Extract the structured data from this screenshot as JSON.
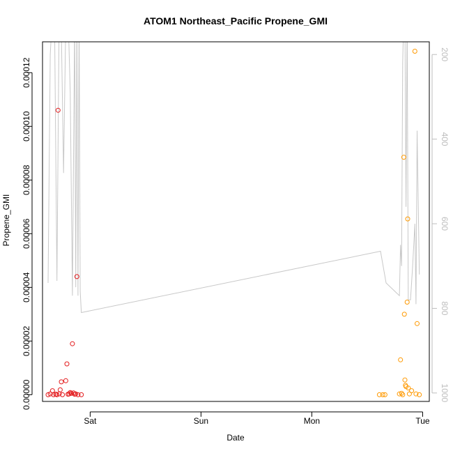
{
  "chart_data": {
    "type": "scatter",
    "title": "ATOM1 Northeast_Pacific Propene_GMI",
    "xlabel": "Date",
    "ylabel": "Propene_GMI",
    "x_ticks": [
      "Sat",
      "Sun",
      "Mon",
      "Tue"
    ],
    "x_tick_days": [
      1,
      2,
      3,
      4
    ],
    "xlim": [
      0.57,
      4.06
    ],
    "ylim": [
      -2.5e-06,
      0.0001315
    ],
    "y_ticks": [
      0,
      2e-05,
      4e-05,
      6e-05,
      8e-05,
      0.0001,
      0.00012
    ],
    "y_tick_labels": [
      "0.00000",
      "0.00002",
      "0.00004",
      "0.00006",
      "0.00008",
      "0.00010",
      "0.00012"
    ],
    "y2_lim": [
      1020,
      170
    ],
    "y2_ticks": [
      200,
      400,
      600,
      800,
      1000
    ],
    "y2_tick_labels": [
      "200",
      "400",
      "600",
      "800",
      "1000"
    ],
    "colors": {
      "series1": "#e31a1c",
      "series2": "#ff9900",
      "pressure": "#c8c8c8",
      "axis": "#000000",
      "axis2": "#bdbdbd"
    },
    "series": [
      {
        "color": "#e31a1c",
        "points": [
          [
            0.62,
            0.0
          ],
          [
            0.64,
            3e-07
          ],
          [
            0.66,
            1.5e-06
          ],
          [
            0.67,
            0.0
          ],
          [
            0.69,
            2e-07
          ],
          [
            0.7,
            0.0
          ],
          [
            0.71,
            0.000106
          ],
          [
            0.72,
            3e-07
          ],
          [
            0.73,
            1.8e-06
          ],
          [
            0.74,
            4.8e-06
          ],
          [
            0.75,
            0.0
          ],
          [
            0.78,
            5.2e-06
          ],
          [
            0.79,
            1.15e-05
          ],
          [
            0.8,
            2e-07
          ],
          [
            0.81,
            3e-07
          ],
          [
            0.82,
            8e-07
          ],
          [
            0.83,
            5e-07
          ],
          [
            0.84,
            1.9e-05
          ],
          [
            0.85,
            7e-07
          ],
          [
            0.86,
            2e-07
          ],
          [
            0.87,
            3e-07
          ],
          [
            0.88,
            4.4e-05
          ],
          [
            0.89,
            0.0
          ],
          [
            0.92,
            0.0
          ]
        ]
      },
      {
        "color": "#ff9900",
        "points": [
          [
            3.61,
            0.0
          ],
          [
            3.64,
            0.0
          ],
          [
            3.66,
            0.0
          ],
          [
            3.79,
            3e-07
          ],
          [
            3.8,
            1.3e-05
          ],
          [
            3.81,
            5e-07
          ],
          [
            3.82,
            0.0
          ],
          [
            3.83,
            8.85e-05
          ],
          [
            3.835,
            3e-05
          ],
          [
            3.84,
            5.5e-06
          ],
          [
            3.845,
            3.5e-06
          ],
          [
            3.85,
            3e-06
          ],
          [
            3.86,
            3.45e-05
          ],
          [
            3.865,
            6.55e-05
          ],
          [
            3.87,
            2.5e-06
          ],
          [
            3.88,
            3e-07
          ],
          [
            3.9,
            1.5e-06
          ],
          [
            3.93,
            0.000128
          ],
          [
            3.94,
            3e-07
          ],
          [
            3.95,
            2.65e-05
          ],
          [
            3.97,
            0.0
          ]
        ]
      }
    ],
    "pressure_line": {
      "color": "#c8c8c8",
      "points": [
        [
          0.62,
          740
        ],
        [
          0.64,
          200
        ],
        [
          0.66,
          100
        ],
        [
          0.68,
          160
        ],
        [
          0.7,
          735
        ],
        [
          0.72,
          100
        ],
        [
          0.74,
          140
        ],
        [
          0.76,
          480
        ],
        [
          0.78,
          120
        ],
        [
          0.8,
          100
        ],
        [
          0.82,
          290
        ],
        [
          0.84,
          770
        ],
        [
          0.86,
          120
        ],
        [
          0.87,
          750
        ],
        [
          0.88,
          120
        ],
        [
          0.89,
          770
        ],
        [
          0.9,
          100
        ],
        [
          0.91,
          760
        ],
        [
          0.92,
          810
        ],
        [
          3.62,
          665
        ],
        [
          3.67,
          740
        ],
        [
          3.79,
          770
        ],
        [
          3.8,
          650
        ],
        [
          3.81,
          700
        ],
        [
          3.82,
          220
        ],
        [
          3.83,
          100
        ],
        [
          3.84,
          120
        ],
        [
          3.85,
          560
        ],
        [
          3.86,
          100
        ],
        [
          3.87,
          780
        ],
        [
          3.89,
          780
        ],
        [
          3.91,
          700
        ],
        [
          3.93,
          600
        ],
        [
          3.94,
          790
        ],
        [
          3.95,
          380
        ],
        [
          3.97,
          720
        ]
      ]
    }
  }
}
